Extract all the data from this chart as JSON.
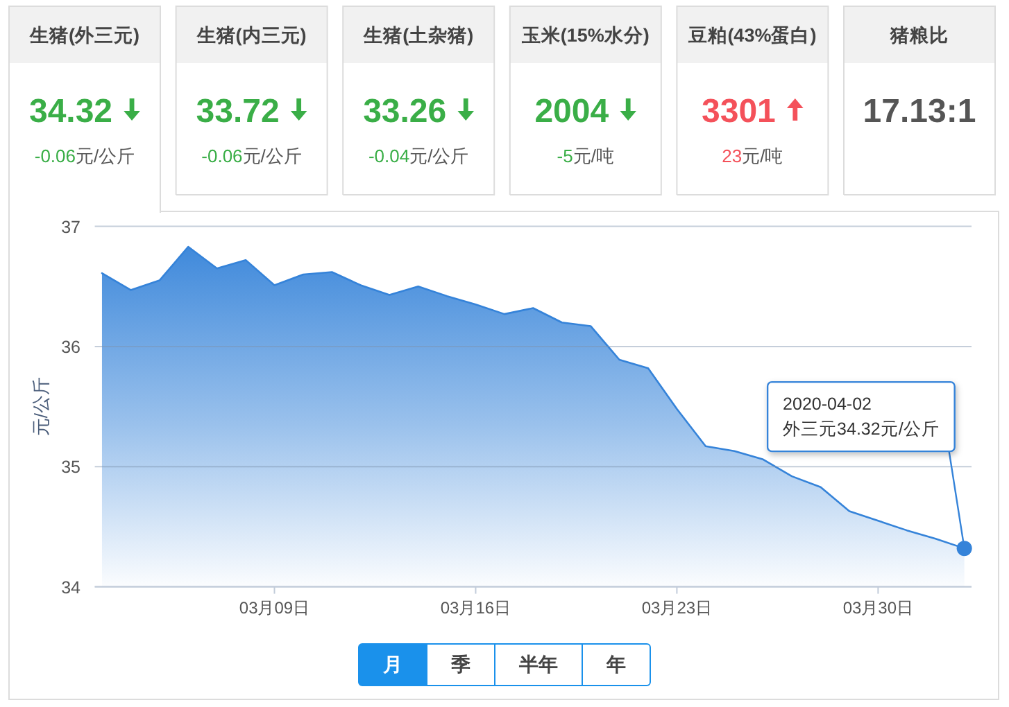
{
  "chart_data": [
    {
      "type": "other",
      "title": "生猪(外三元)",
      "values": [
        34.32,
        -0.06
      ],
      "data_labels": true,
      "annotations": [
        "元/公斤"
      ],
      "colors": [
        "#3aae47",
        "#3aae47"
      ]
    },
    {
      "type": "other",
      "title": "生猪(内三元)",
      "values": [
        33.72,
        -0.06
      ],
      "data_labels": true,
      "annotations": [
        "元/公斤"
      ],
      "colors": [
        "#3aae47",
        "#3aae47"
      ]
    },
    {
      "type": "other",
      "title": "生猪(土杂猪)",
      "values": [
        33.26,
        -0.04
      ],
      "data_labels": true,
      "annotations": [
        "元/公斤"
      ],
      "colors": [
        "#3aae47",
        "#3aae47"
      ]
    },
    {
      "type": "other",
      "title": "玉米(15%水分)",
      "values": [
        2004,
        -5
      ],
      "data_labels": true,
      "annotations": [
        "元/吨"
      ],
      "colors": [
        "#3aae47",
        "#3aae47"
      ]
    },
    {
      "type": "other",
      "title": "豆粕(43%蛋白)",
      "values": [
        3301,
        23
      ],
      "data_labels": true,
      "annotations": [
        "元/吨"
      ],
      "colors": [
        "#f4515a",
        "#f4515a"
      ]
    },
    {
      "type": "other",
      "title": "猪粮比",
      "annotations": [
        "17.13:1"
      ],
      "colors": [
        "#555555"
      ]
    },
    {
      "type": "area",
      "x": [
        "2020-03-03",
        "2020-03-04",
        "2020-03-05",
        "2020-03-06",
        "2020-03-07",
        "2020-03-08",
        "2020-03-09",
        "2020-03-10",
        "2020-03-11",
        "2020-03-12",
        "2020-03-13",
        "2020-03-14",
        "2020-03-15",
        "2020-03-16",
        "2020-03-17",
        "2020-03-18",
        "2020-03-19",
        "2020-03-20",
        "2020-03-21",
        "2020-03-22",
        "2020-03-23",
        "2020-03-24",
        "2020-03-25",
        "2020-03-26",
        "2020-03-27",
        "2020-03-28",
        "2020-03-29",
        "2020-03-30",
        "2020-03-31",
        "2020-04-01",
        "2020-04-02"
      ],
      "series": [
        {
          "color": "#3583d9",
          "values": [
            36.61,
            36.47,
            36.55,
            36.83,
            36.65,
            36.72,
            36.51,
            36.6,
            36.62,
            36.51,
            36.43,
            36.5,
            36.42,
            36.35,
            36.27,
            36.32,
            36.2,
            36.17,
            35.89,
            35.82,
            35.48,
            35.17,
            35.13,
            35.06,
            34.92,
            34.83,
            34.63,
            34.55,
            34.47,
            34.4,
            34.32
          ]
        }
      ],
      "ylabel": "元/公斤",
      "xlim": [
        "2020-03-02T18:00",
        "2020-04-02T06:00"
      ],
      "xticks": [
        {
          "value": "2020-03-09",
          "label": "03月09日"
        },
        {
          "value": "2020-03-16",
          "label": "03月16日"
        },
        {
          "value": "2020-03-23",
          "label": "03月23日"
        },
        {
          "value": "2020-03-30",
          "label": "03月30日"
        }
      ],
      "ylim": [
        34,
        37
      ],
      "yticks": [
        34,
        35,
        36,
        37
      ],
      "grid": "y",
      "annotations": [
        {
          "text": "2020-04-02\n外三元34.32元/公斤",
          "x": "2020-04-02",
          "y": 34.32
        }
      ]
    },
    {
      "type": "other",
      "categories": [
        "月",
        "季",
        "半年",
        "年"
      ],
      "colors": [
        "#1a91eb",
        "#ffffff",
        "#ffffff",
        "#ffffff"
      ]
    }
  ]
}
